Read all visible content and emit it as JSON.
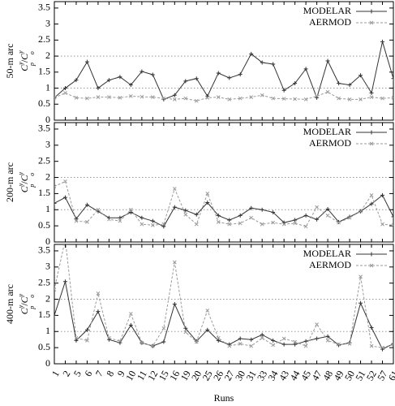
{
  "chart_data": [
    {
      "type": "line",
      "ylabel": "50-m arc",
      "ylabel_formula": {
        "num": "C",
        "num_sup": "y",
        "num_sub": "p",
        "sep": "/",
        "den": "C",
        "den_sup": "y",
        "den_sub": "o"
      },
      "ylim": [
        0,
        3.7
      ],
      "yticks": [
        0,
        0.5,
        1,
        1.5,
        2,
        2.5,
        3,
        3.5
      ],
      "reference_lines": [
        1,
        2
      ],
      "legend": "top-right",
      "series": [
        {
          "name": "MODELAR",
          "color": "#333333",
          "marker": "plus",
          "dash": false,
          "values": [
            0.7,
            1.0,
            1.25,
            1.82,
            1.0,
            1.25,
            1.35,
            1.1,
            1.52,
            1.42,
            0.65,
            0.78,
            1.22,
            1.3,
            0.75,
            1.47,
            1.32,
            1.43,
            2.07,
            1.8,
            1.75,
            0.93,
            1.15,
            1.6,
            0.7,
            1.85,
            1.15,
            1.1,
            1.4,
            0.85,
            2.45,
            1.3
          ]
        },
        {
          "name": "AERMOD",
          "color": "#9a9a9a",
          "marker": "cross",
          "dash": true,
          "values": [
            0.7,
            0.85,
            0.7,
            0.68,
            0.72,
            0.72,
            0.7,
            0.75,
            0.73,
            0.72,
            0.68,
            0.65,
            0.68,
            0.6,
            0.7,
            0.72,
            0.65,
            0.68,
            0.72,
            0.78,
            0.68,
            0.67,
            0.66,
            0.65,
            0.75,
            0.88,
            0.68,
            0.65,
            0.65,
            0.72,
            0.68,
            0.7
          ]
        }
      ]
    },
    {
      "type": "line",
      "ylabel": "200-m arc",
      "ylabel_formula": {
        "num": "C",
        "num_sup": "y",
        "num_sub": "p",
        "sep": "/",
        "den": "C",
        "den_sup": "y",
        "den_sub": "o"
      },
      "ylim": [
        0,
        3.7
      ],
      "yticks": [
        0,
        0.5,
        1,
        1.5,
        2,
        2.5,
        3,
        3.5
      ],
      "reference_lines": [
        1,
        2
      ],
      "legend": "top-right",
      "series": [
        {
          "name": "MODELAR",
          "color": "#333333",
          "marker": "plus",
          "dash": false,
          "values": [
            1.2,
            1.38,
            0.72,
            1.15,
            0.95,
            0.75,
            0.75,
            0.92,
            0.75,
            0.65,
            0.48,
            1.08,
            0.98,
            0.85,
            1.22,
            0.82,
            0.68,
            0.82,
            1.05,
            1.0,
            0.92,
            0.6,
            0.68,
            0.82,
            0.7,
            1.02,
            0.62,
            0.78,
            0.95,
            1.18,
            1.45,
            0.78
          ]
        },
        {
          "name": "AERMOD",
          "color": "#9a9a9a",
          "marker": "cross",
          "dash": true,
          "values": [
            1.72,
            1.88,
            0.65,
            0.62,
            1.0,
            0.7,
            0.65,
            1.0,
            0.55,
            0.52,
            0.55,
            1.65,
            0.85,
            0.55,
            1.5,
            0.62,
            0.55,
            0.58,
            0.75,
            0.55,
            0.6,
            0.55,
            0.58,
            0.48,
            1.08,
            0.82,
            0.6,
            0.75,
            0.95,
            1.45,
            0.55,
            0.52
          ]
        }
      ]
    },
    {
      "type": "line",
      "ylabel": "400-m arc",
      "ylabel_formula": {
        "num": "C",
        "num_sup": "y",
        "num_sub": "p",
        "sep": "/",
        "den": "C",
        "den_sup": "y",
        "den_sub": "o"
      },
      "xlabel": "Runs",
      "categories": [
        "1",
        "2",
        "5",
        "6",
        "7",
        "8",
        "9",
        "10",
        "11",
        "12",
        "15",
        "16",
        "19",
        "20",
        "25",
        "26",
        "27",
        "30",
        "31",
        "33",
        "34",
        "43",
        "44",
        "45",
        "47",
        "48",
        "49",
        "50",
        "51",
        "52",
        "57",
        "61"
      ],
      "ylim": [
        0,
        3.7
      ],
      "yticks": [
        0,
        0.5,
        1,
        1.5,
        2,
        2.5,
        3,
        3.5
      ],
      "reference_lines": [
        1,
        2
      ],
      "legend": "top-right",
      "series": [
        {
          "name": "MODELAR",
          "color": "#333333",
          "marker": "plus",
          "dash": false,
          "values": [
            1.5,
            2.55,
            0.72,
            1.05,
            1.62,
            0.75,
            0.65,
            1.2,
            0.65,
            0.55,
            0.68,
            1.85,
            1.1,
            0.7,
            1.05,
            0.72,
            0.6,
            0.78,
            0.75,
            0.9,
            0.72,
            0.6,
            0.6,
            0.7,
            0.78,
            0.85,
            0.58,
            0.65,
            1.88,
            1.12,
            0.45,
            0.62
          ]
        },
        {
          "name": "AERMOD",
          "color": "#9a9a9a",
          "marker": "cross",
          "dash": true,
          "values": [
            2.3,
            3.85,
            0.8,
            0.72,
            2.18,
            0.8,
            0.7,
            1.55,
            0.65,
            0.55,
            1.1,
            3.15,
            0.98,
            0.68,
            1.65,
            0.8,
            0.55,
            0.62,
            0.55,
            0.8,
            0.58,
            0.78,
            0.68,
            0.55,
            1.22,
            0.72,
            0.6,
            0.62,
            2.7,
            0.55,
            0.5,
            0.6
          ]
        }
      ]
    }
  ]
}
